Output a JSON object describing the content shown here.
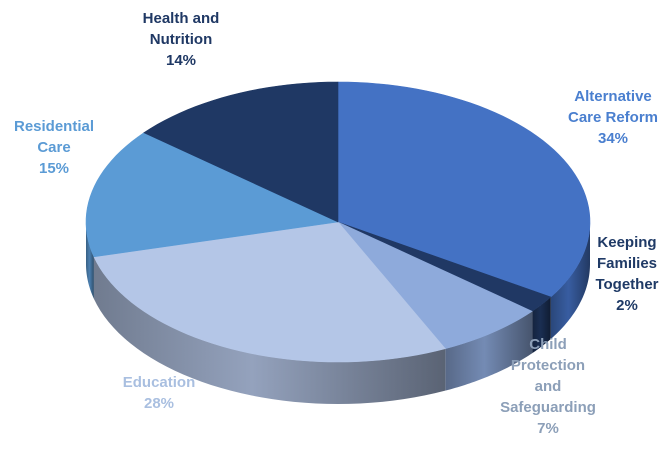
{
  "chart_data": {
    "type": "pie",
    "style": "3d",
    "slices": [
      {
        "name": "Alternative Care Reform",
        "value": 34,
        "color": "#4472c4",
        "label_lines": [
          "Alternative",
          "Care Reform",
          "34%"
        ],
        "label_color": "#4a7fcf"
      },
      {
        "name": "Keeping Families Together",
        "value": 2,
        "color": "#203864",
        "label_lines": [
          "Keeping",
          "Families",
          "Together",
          "2%"
        ],
        "label_color": "#1f3a66"
      },
      {
        "name": "Child Protection and Safeguarding",
        "value": 7,
        "color": "#8eaadb",
        "label_lines": [
          "Child",
          "Protection",
          "and",
          "Safeguarding",
          "7%"
        ],
        "label_color": "#8c9fb8"
      },
      {
        "name": "Education",
        "value": 28,
        "color": "#b4c6e7",
        "label_lines": [
          "Education",
          "28%"
        ],
        "label_color": "#a9bfe0"
      },
      {
        "name": "Residential Care",
        "value": 15,
        "color": "#5b9bd5",
        "label_lines": [
          "Residential",
          "Care",
          "15%"
        ],
        "label_color": "#5b9bd5"
      },
      {
        "name": "Health and Nutrition",
        "value": 14,
        "color": "#1f3864",
        "label_lines": [
          "Health and",
          "Nutrition",
          "14%"
        ],
        "label_color": "#1f3864"
      }
    ]
  }
}
